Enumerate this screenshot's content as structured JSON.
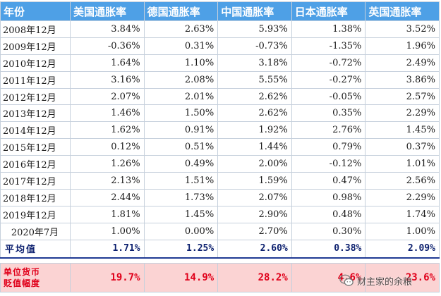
{
  "table": {
    "headers": [
      "年份",
      "美国通胀率",
      "德国通胀率",
      "中国通胀率",
      "日本通胀率",
      "英国通胀率"
    ],
    "rows": [
      {
        "year": "2008年12月",
        "values": [
          "3.84%",
          "2.63%",
          "5.93%",
          "1.38%",
          "3.52%"
        ]
      },
      {
        "year": "2009年12月",
        "values": [
          "-0.36%",
          "0.31%",
          "-0.73%",
          "-1.35%",
          "1.96%"
        ]
      },
      {
        "year": "2010年12月",
        "values": [
          "1.64%",
          "1.10%",
          "3.18%",
          "-0.72%",
          "2.49%"
        ]
      },
      {
        "year": "2011年12月",
        "values": [
          "3.16%",
          "2.08%",
          "5.55%",
          "-0.27%",
          "3.86%"
        ]
      },
      {
        "year": "2012年12月",
        "values": [
          "2.07%",
          "2.01%",
          "2.62%",
          "-0.05%",
          "2.57%"
        ]
      },
      {
        "year": "2013年12月",
        "values": [
          "1.46%",
          "1.50%",
          "2.62%",
          "0.35%",
          "2.29%"
        ]
      },
      {
        "year": "2014年12月",
        "values": [
          "1.62%",
          "0.91%",
          "1.92%",
          "2.76%",
          "1.45%"
        ]
      },
      {
        "year": "2015年12月",
        "values": [
          "0.12%",
          "0.51%",
          "1.44%",
          "0.79%",
          "0.37%"
        ]
      },
      {
        "year": "2016年12月",
        "values": [
          "1.26%",
          "0.49%",
          "2.00%",
          "-0.12%",
          "1.01%"
        ]
      },
      {
        "year": "2017年12月",
        "values": [
          "2.13%",
          "1.51%",
          "1.59%",
          "0.47%",
          "2.56%"
        ]
      },
      {
        "year": "2018年12月",
        "values": [
          "2.44%",
          "1.73%",
          "2.07%",
          "0.98%",
          "2.29%"
        ]
      },
      {
        "year": "2019年12月",
        "values": [
          "1.81%",
          "1.45%",
          "2.90%",
          "0.48%",
          "1.74%"
        ]
      },
      {
        "year": "2020年7月",
        "values": [
          "1.00%",
          "0.00%",
          "2.70%",
          "0.30%",
          "1.00%"
        ]
      }
    ],
    "average": {
      "label": "平均值",
      "values": [
        "1.71%",
        "1.25%",
        "2.60%",
        "0.38%",
        "2.09%"
      ]
    },
    "devaluation": {
      "label_line1": "单位货币",
      "label_line2": "贬值幅度",
      "values": [
        "19.7%",
        "14.9%",
        "28.2%",
        "4.6%",
        "23.6%"
      ]
    }
  },
  "watermark": {
    "text": "财主家的余粮",
    "icon": "wechat-icon"
  },
  "colors": {
    "header_bg": "#4ea0e6",
    "header_text": "#ffffff",
    "average_text": "#0b1f6e",
    "devaluation_bg": "#fbd3d3",
    "devaluation_text": "#e0001a"
  }
}
